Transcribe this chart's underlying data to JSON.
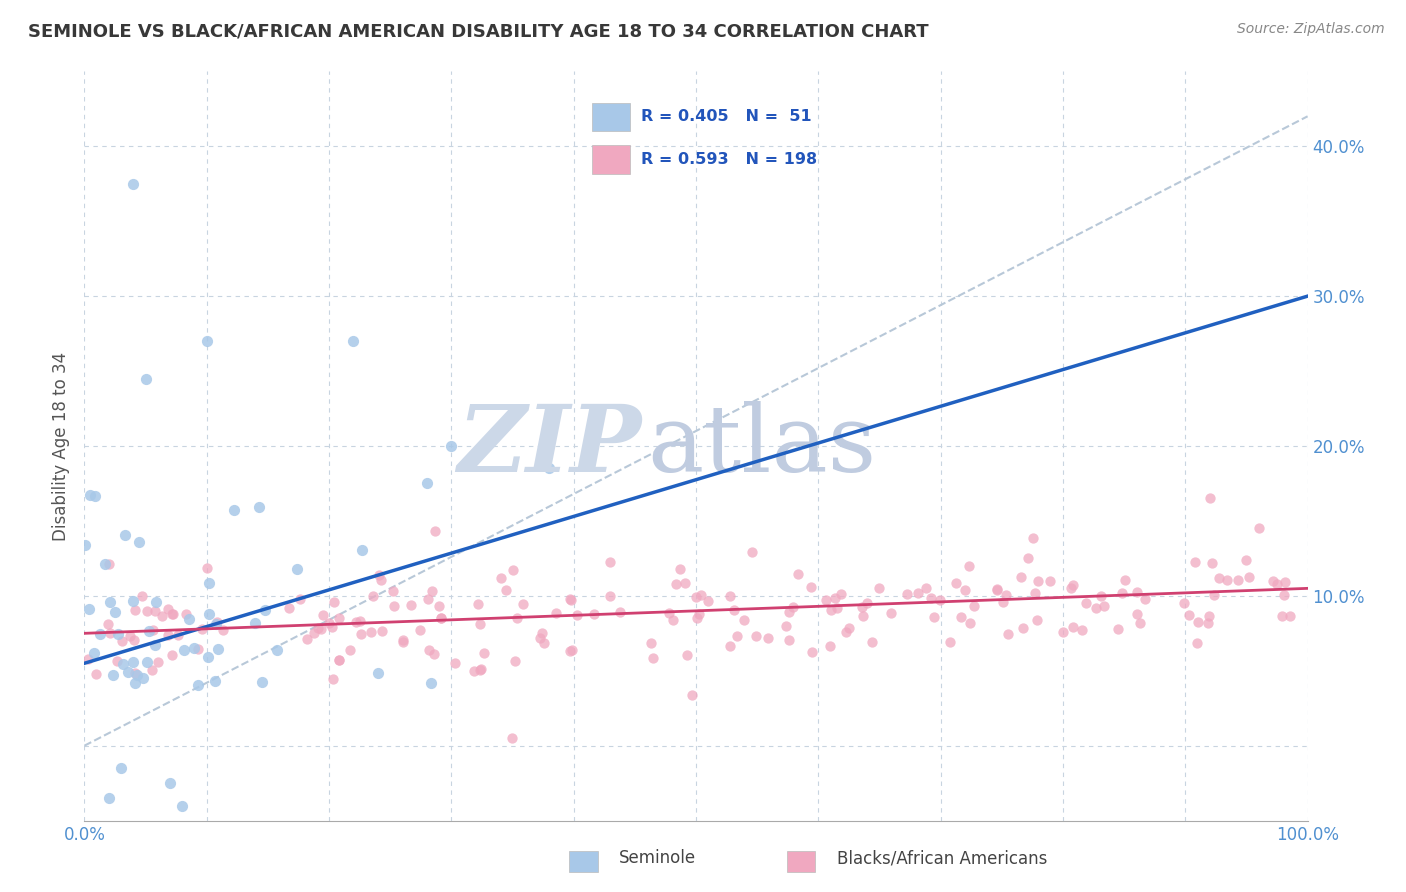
{
  "title": "SEMINOLE VS BLACK/AFRICAN AMERICAN DISABILITY AGE 18 TO 34 CORRELATION CHART",
  "source": "Source: ZipAtlas.com",
  "ylabel": "Disability Age 18 to 34",
  "xlim": [
    0.0,
    1.0
  ],
  "ylim": [
    -0.05,
    0.45
  ],
  "ytick_positions": [
    0.0,
    0.1,
    0.2,
    0.3,
    0.4
  ],
  "ytick_labels": [
    "",
    "10.0%",
    "20.0%",
    "30.0%",
    "40.0%"
  ],
  "xtick_positions": [
    0.0,
    0.1,
    0.2,
    0.3,
    0.4,
    0.5,
    0.6,
    0.7,
    0.8,
    0.9,
    1.0
  ],
  "xtick_labels": [
    "0.0%",
    "",
    "",
    "",
    "",
    "",
    "",
    "",
    "",
    "",
    "100.0%"
  ],
  "seminole_R": 0.405,
  "seminole_N": 51,
  "black_R": 0.593,
  "black_N": 198,
  "seminole_dot_color": "#a8c8e8",
  "black_dot_color": "#f0a8c0",
  "seminole_line_color": "#2060c0",
  "black_line_color": "#d04070",
  "dash_line_color": "#b8c8d8",
  "watermark_zip_color": "#ccd8e8",
  "watermark_atlas_color": "#c0cce0",
  "title_color": "#383838",
  "axis_tick_color": "#5090d0",
  "grid_color": "#c8d4e0",
  "background_color": "#ffffff",
  "legend_text_color": "#2255bb",
  "bottom_label_color": "#444444",
  "source_color": "#888888",
  "seminole_line_x": [
    0.0,
    1.0
  ],
  "seminole_line_y": [
    0.055,
    0.3
  ],
  "black_line_x": [
    0.0,
    1.0
  ],
  "black_line_y": [
    0.075,
    0.105
  ],
  "dash_line_x": [
    0.0,
    1.0
  ],
  "dash_line_y": [
    0.0,
    0.42
  ]
}
